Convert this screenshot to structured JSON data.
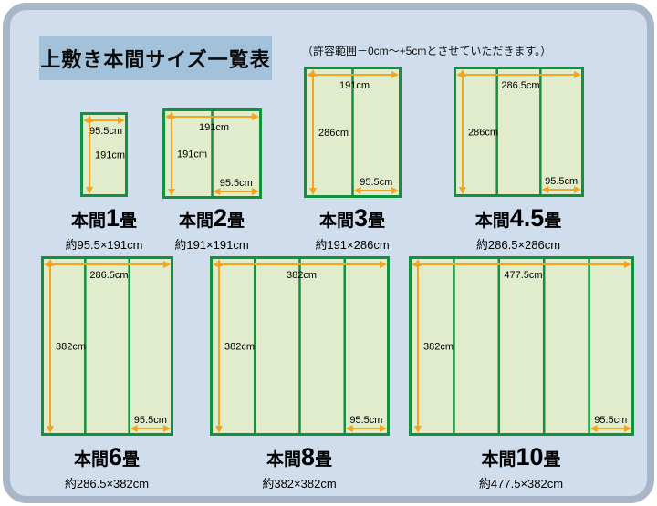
{
  "title": "上敷き本間サイズ一覧表",
  "note": "（許容範囲－0cm～+5cmとさせていただきます。）",
  "colors": {
    "card_bg": "#cfdded",
    "card_border": "#a9b6c7",
    "title_bg": "#a2c1db",
    "mat_fill": "#e0eccb",
    "mat_border": "#13913d",
    "arrow": "#f5a41e",
    "text": "#000000"
  },
  "diagrams": [
    {
      "name_prefix": "本間",
      "name_number": "1",
      "name_suffix": "畳",
      "size_label": "約95.5×191cm",
      "width_label": "95.5cm",
      "height_label": "191cm",
      "panel_width_label": null,
      "panels": 1
    },
    {
      "name_prefix": "本間",
      "name_number": "2",
      "name_suffix": "畳",
      "size_label": "約191×191cm",
      "width_label": "191cm",
      "height_label": "191cm",
      "panel_width_label": "95.5cm",
      "panels": 2
    },
    {
      "name_prefix": "本間",
      "name_number": "3",
      "name_suffix": "畳",
      "size_label": "約191×286cm",
      "width_label": "191cm",
      "height_label": "286cm",
      "panel_width_label": "95.5cm",
      "panels": 2
    },
    {
      "name_prefix": "本間",
      "name_number": "4.5",
      "name_suffix": "畳",
      "size_label": "約286.5×286cm",
      "width_label": "286.5cm",
      "height_label": "286cm",
      "panel_width_label": "95.5cm",
      "panels": 3
    },
    {
      "name_prefix": "本間",
      "name_number": "6",
      "name_suffix": "畳",
      "size_label": "約286.5×382cm",
      "width_label": "286.5cm",
      "height_label": "382cm",
      "panel_width_label": "95.5cm",
      "panels": 3
    },
    {
      "name_prefix": "本間",
      "name_number": "8",
      "name_suffix": "畳",
      "size_label": "約382×382cm",
      "width_label": "382cm",
      "height_label": "382cm",
      "panel_width_label": "95.5cm",
      "panels": 4
    },
    {
      "name_prefix": "本間",
      "name_number": "10",
      "name_suffix": "畳",
      "size_label": "約477.5×382cm",
      "width_label": "477.5cm",
      "height_label": "382cm",
      "panel_width_label": "95.5cm",
      "panels": 5
    }
  ]
}
